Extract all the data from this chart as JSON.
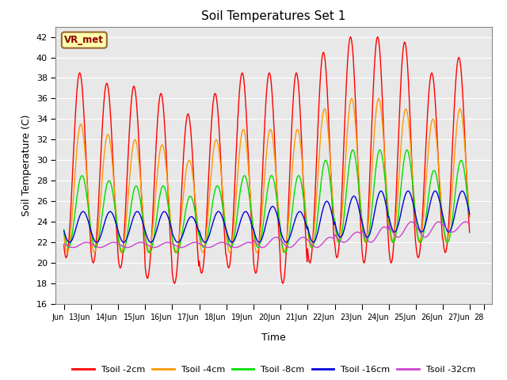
{
  "title": "Soil Temperatures Set 1",
  "xlabel": "Time",
  "ylabel": "Soil Temperature (C)",
  "ylim": [
    16,
    43
  ],
  "yticks": [
    16,
    18,
    20,
    22,
    24,
    26,
    28,
    30,
    32,
    34,
    36,
    38,
    40,
    42
  ],
  "label_annotation": "VR_met",
  "colors": {
    "2cm": "#ff0000",
    "4cm": "#ff9900",
    "8cm": "#00dd00",
    "16cm": "#0000dd",
    "32cm": "#cc44cc"
  },
  "legend_labels": [
    "Tsoil -2cm",
    "Tsoil -4cm",
    "Tsoil -8cm",
    "Tsoil -16cm",
    "Tsoil -32cm"
  ],
  "bg_color": "#e8e8e8",
  "peak_2cm": [
    38.5,
    37.5,
    37.2,
    36.5,
    34.5,
    36.5,
    38.5,
    38.5,
    38.5,
    40.5,
    42.0,
    42.0,
    41.5,
    38.5,
    40.0
  ],
  "trough_2cm": [
    20.5,
    20.0,
    19.5,
    18.5,
    18.0,
    19.0,
    19.5,
    19.0,
    18.0,
    20.0,
    20.5,
    20.0,
    20.0,
    20.5,
    21.0
  ],
  "peak_4cm": [
    33.5,
    32.5,
    32.0,
    31.5,
    30.0,
    32.0,
    33.0,
    33.0,
    33.0,
    35.0,
    36.0,
    36.0,
    35.0,
    34.0,
    35.0
  ],
  "trough_4cm": [
    21.0,
    21.0,
    21.0,
    21.0,
    21.0,
    21.0,
    21.0,
    21.0,
    21.0,
    21.5,
    22.0,
    22.0,
    22.0,
    22.0,
    22.0
  ],
  "peak_8cm": [
    28.5,
    28.0,
    27.5,
    27.5,
    26.5,
    27.5,
    28.5,
    28.5,
    28.5,
    30.0,
    31.0,
    31.0,
    31.0,
    29.0,
    30.0
  ],
  "trough_8cm": [
    21.5,
    21.5,
    21.0,
    21.0,
    21.0,
    21.5,
    21.5,
    21.5,
    21.0,
    21.5,
    22.0,
    22.0,
    22.0,
    22.0,
    22.0
  ],
  "peak_16cm": [
    25.0,
    25.0,
    25.0,
    25.0,
    24.5,
    25.0,
    25.0,
    25.5,
    25.0,
    26.0,
    26.5,
    27.0,
    27.0,
    27.0,
    27.0
  ],
  "trough_16cm": [
    22.0,
    22.0,
    22.0,
    22.0,
    22.0,
    22.0,
    22.0,
    22.0,
    22.0,
    22.0,
    22.5,
    22.5,
    23.0,
    23.0,
    23.0
  ],
  "peak_32cm": [
    22.0,
    22.0,
    22.0,
    22.0,
    22.0,
    22.0,
    22.0,
    22.5,
    22.5,
    22.5,
    23.0,
    23.5,
    24.0,
    24.0,
    24.0
  ],
  "trough_32cm": [
    21.5,
    21.5,
    21.5,
    21.5,
    21.5,
    21.5,
    21.5,
    21.5,
    21.5,
    21.5,
    22.0,
    22.0,
    22.5,
    22.5,
    23.0
  ],
  "peak_hour_2cm": 14,
  "peak_hour_4cm": 15,
  "peak_hour_8cm": 16,
  "peak_hour_16cm": 17,
  "peak_hour_32cm": 20,
  "xtick_positions": [
    0,
    1,
    2,
    3,
    4,
    5,
    6,
    7,
    8,
    9,
    10,
    11,
    12,
    13,
    14,
    15,
    15.5
  ],
  "xtick_labels": [
    "Jun",
    "13Jun",
    "14Jun",
    "15Jun",
    "16Jun",
    "17Jun",
    "18Jun",
    "19Jun",
    "20Jun",
    "21Jun",
    "22Jun",
    "23Jun",
    "24Jun",
    "25Jun",
    "26Jun",
    "27Jun",
    "28"
  ]
}
